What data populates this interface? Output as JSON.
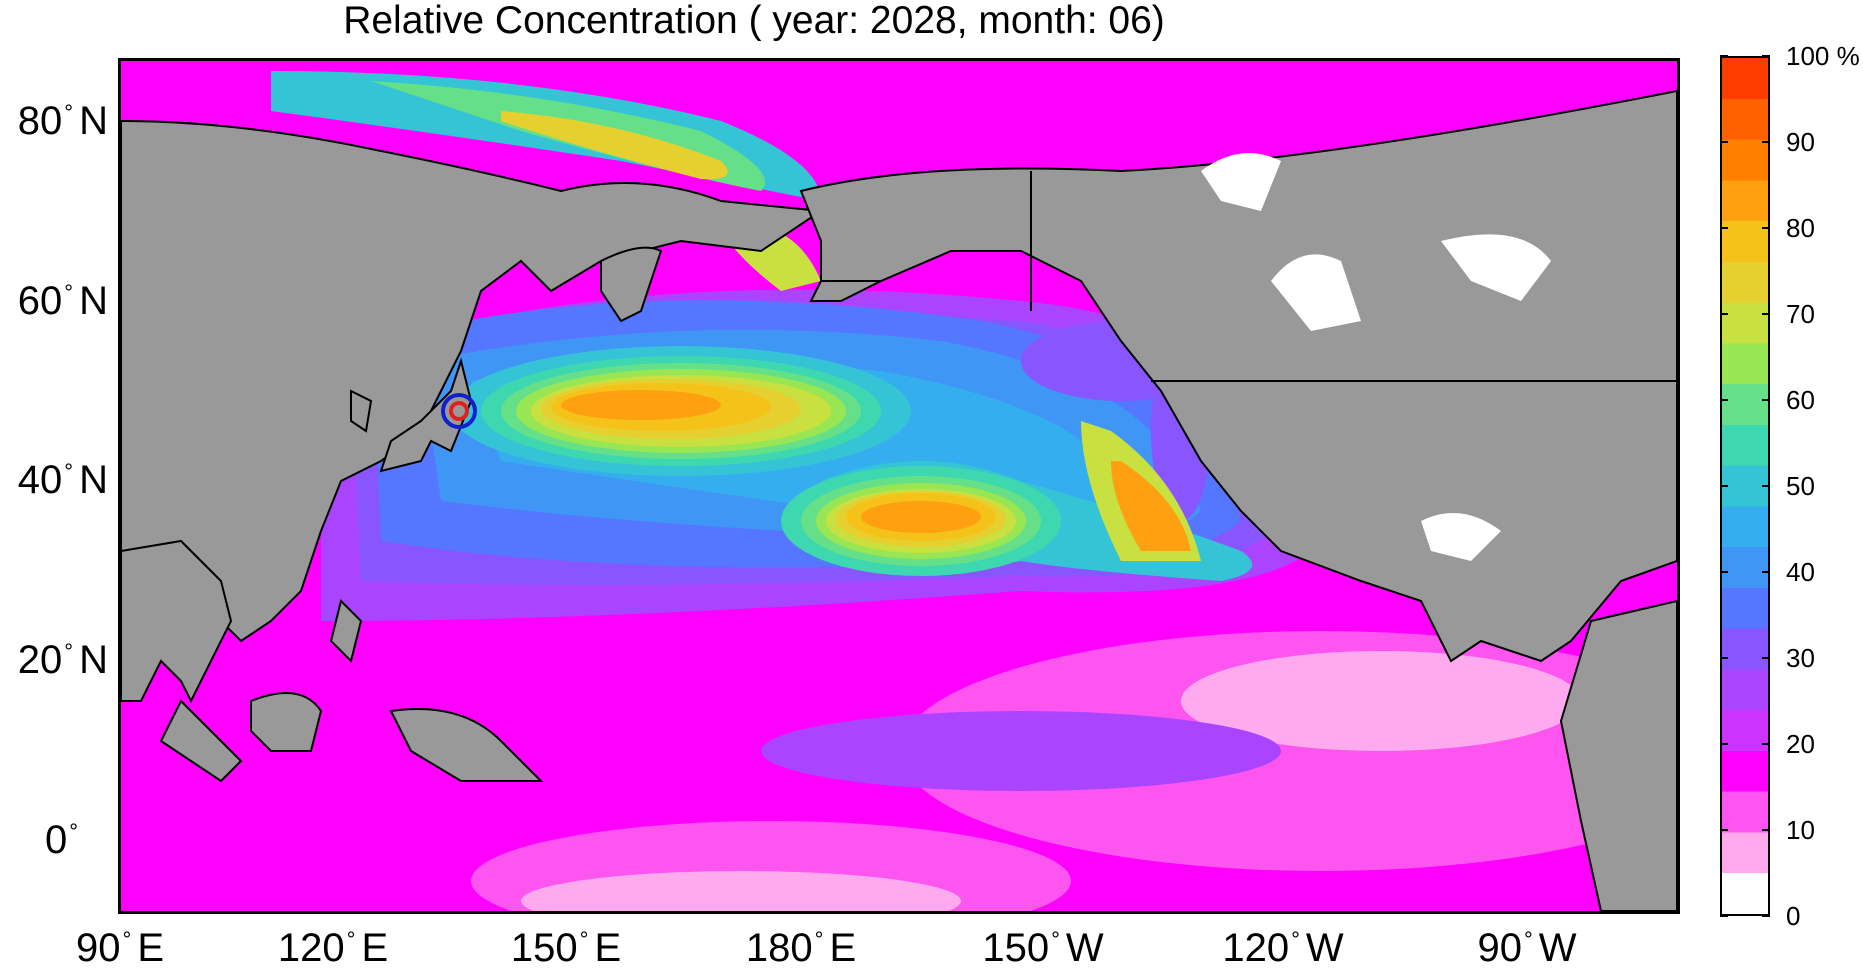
{
  "map": {
    "title": "Relative Concentration ( year: 2028, month: 06)",
    "lat_labels": [
      {
        "value": "80",
        "suffix": "N"
      },
      {
        "value": "60",
        "suffix": "N"
      },
      {
        "value": "40",
        "suffix": "N"
      },
      {
        "value": "20",
        "suffix": "N"
      },
      {
        "value": "0",
        "suffix": ""
      }
    ],
    "lon_labels": [
      {
        "value": "90",
        "suffix": "E"
      },
      {
        "value": "120",
        "suffix": "E"
      },
      {
        "value": "150",
        "suffix": "E"
      },
      {
        "value": "180",
        "suffix": "E"
      },
      {
        "value": "150",
        "suffix": "W"
      },
      {
        "value": "120",
        "suffix": "W"
      },
      {
        "value": "90",
        "suffix": "W"
      }
    ],
    "marker": {
      "lat": 37.4,
      "lon": 141.0
    },
    "land_color": "#999999",
    "colorbar": {
      "labels": [
        "100 %",
        "90",
        "80",
        "70",
        "60",
        "50",
        "40",
        "30",
        "20",
        "10",
        "0"
      ],
      "colors": [
        "#ffffff",
        "#ffaaee",
        "#ff55f0",
        "#ff00ff",
        "#cc33ff",
        "#aa44ff",
        "#8855ff",
        "#5577ff",
        "#3f96f4",
        "#35aef0",
        "#35c4d6",
        "#3dd8b0",
        "#66e088",
        "#99e655",
        "#c8e040",
        "#e6d030",
        "#f5c21a",
        "#ffa010",
        "#ff8000",
        "#ff6000",
        "#ff3c00"
      ]
    }
  }
}
